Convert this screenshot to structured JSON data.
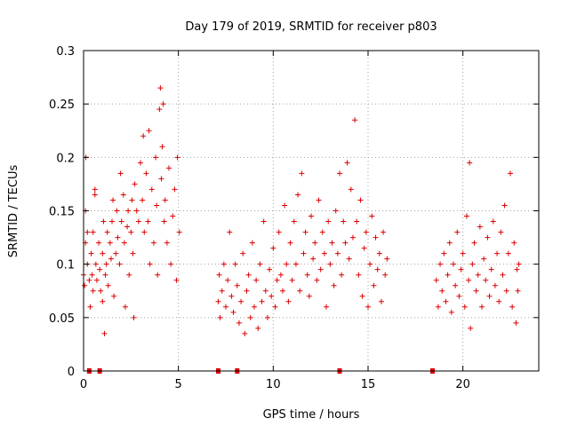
{
  "chart_data": {
    "type": "scatter",
    "title": "Day 179 of 2019, SRMTID for receiver p803",
    "xlabel": "GPS time / hours",
    "ylabel": "SRMTID / TECUs",
    "xlim": [
      0,
      24
    ],
    "ylim": [
      0,
      0.3
    ],
    "x_ticks": [
      0,
      5,
      10,
      15,
      20
    ],
    "x_tick_labels": [
      "0",
      "5",
      "10",
      "15",
      "20"
    ],
    "y_ticks": [
      0,
      0.05,
      0.1,
      0.15,
      0.2,
      0.25,
      0.3
    ],
    "y_tick_labels": [
      "0",
      "0.05",
      "0.1",
      "0.15",
      "0.2",
      "0.25",
      "0.3"
    ],
    "grid": true,
    "marker": "plus",
    "series": [
      {
        "name": "SRMTID",
        "color": "#dd0000",
        "segments": [
          {
            "x_range": [
              0.0,
              5.1
            ],
            "points": [
              [
                0.0,
                0.09
              ],
              [
                0.05,
                0.08
              ],
              [
                0.1,
                0.12
              ],
              [
                0.1,
                0.15
              ],
              [
                0.12,
                0.2
              ],
              [
                0.2,
                0.1
              ],
              [
                0.2,
                0.13
              ],
              [
                0.3,
                0.085
              ],
              [
                0.35,
                0.06
              ],
              [
                0.4,
                0.11
              ],
              [
                0.45,
                0.09
              ],
              [
                0.5,
                0.075
              ],
              [
                0.5,
                0.13
              ],
              [
                0.6,
                0.165
              ],
              [
                0.6,
                0.17
              ],
              [
                0.65,
                0.1
              ],
              [
                0.7,
                0.085
              ],
              [
                0.8,
                0.12
              ],
              [
                0.85,
                0.095
              ],
              [
                0.9,
                0.075
              ],
              [
                1.0,
                0.11
              ],
              [
                1.0,
                0.065
              ],
              [
                1.05,
                0.14
              ],
              [
                1.1,
                0.035
              ],
              [
                1.15,
                0.09
              ],
              [
                1.2,
                0.1
              ],
              [
                1.25,
                0.13
              ],
              [
                1.3,
                0.08
              ],
              [
                1.4,
                0.12
              ],
              [
                1.45,
                0.105
              ],
              [
                1.5,
                0.14
              ],
              [
                1.55,
                0.16
              ],
              [
                1.6,
                0.07
              ],
              [
                1.7,
                0.11
              ],
              [
                1.75,
                0.15
              ],
              [
                1.8,
                0.125
              ],
              [
                1.9,
                0.1
              ],
              [
                1.95,
                0.185
              ],
              [
                2.0,
                0.14
              ],
              [
                2.1,
                0.165
              ],
              [
                2.15,
                0.12
              ],
              [
                2.2,
                0.06
              ],
              [
                2.3,
                0.135
              ],
              [
                2.35,
                0.15
              ],
              [
                2.4,
                0.09
              ],
              [
                2.5,
                0.13
              ],
              [
                2.55,
                0.16
              ],
              [
                2.6,
                0.11
              ],
              [
                2.65,
                0.05
              ],
              [
                2.7,
                0.175
              ],
              [
                2.8,
                0.15
              ],
              [
                2.9,
                0.14
              ],
              [
                3.0,
                0.195
              ],
              [
                3.1,
                0.16
              ],
              [
                3.15,
                0.22
              ],
              [
                3.2,
                0.13
              ],
              [
                3.3,
                0.185
              ],
              [
                3.4,
                0.14
              ],
              [
                3.45,
                0.225
              ],
              [
                3.5,
                0.1
              ],
              [
                3.6,
                0.17
              ],
              [
                3.7,
                0.12
              ],
              [
                3.8,
                0.2
              ],
              [
                3.85,
                0.155
              ],
              [
                3.9,
                0.09
              ],
              [
                4.0,
                0.245
              ],
              [
                4.05,
                0.265
              ],
              [
                4.1,
                0.18
              ],
              [
                4.15,
                0.21
              ],
              [
                4.2,
                0.25
              ],
              [
                4.25,
                0.14
              ],
              [
                4.3,
                0.16
              ],
              [
                4.4,
                0.12
              ],
              [
                4.5,
                0.19
              ],
              [
                4.6,
                0.1
              ],
              [
                4.7,
                0.145
              ],
              [
                4.8,
                0.17
              ],
              [
                4.9,
                0.085
              ],
              [
                4.95,
                0.2
              ],
              [
                5.05,
                0.13
              ]
            ]
          },
          {
            "x_range": [
              7.0,
              16.0
            ],
            "points": [
              [
                7.1,
                0.065
              ],
              [
                7.15,
                0.09
              ],
              [
                7.2,
                0.05
              ],
              [
                7.3,
                0.075
              ],
              [
                7.4,
                0.1
              ],
              [
                7.5,
                0.06
              ],
              [
                7.6,
                0.085
              ],
              [
                7.7,
                0.13
              ],
              [
                7.8,
                0.07
              ],
              [
                7.9,
                0.055
              ],
              [
                8.0,
                0.1
              ],
              [
                8.1,
                0.08
              ],
              [
                8.2,
                0.045
              ],
              [
                8.3,
                0.065
              ],
              [
                8.4,
                0.11
              ],
              [
                8.5,
                0.035
              ],
              [
                8.6,
                0.075
              ],
              [
                8.7,
                0.09
              ],
              [
                8.8,
                0.05
              ],
              [
                8.9,
                0.12
              ],
              [
                9.0,
                0.06
              ],
              [
                9.1,
                0.085
              ],
              [
                9.2,
                0.04
              ],
              [
                9.3,
                0.1
              ],
              [
                9.4,
                0.065
              ],
              [
                9.5,
                0.14
              ],
              [
                9.6,
                0.075
              ],
              [
                9.7,
                0.05
              ],
              [
                9.8,
                0.095
              ],
              [
                9.9,
                0.07
              ],
              [
                10.0,
                0.115
              ],
              [
                10.1,
                0.06
              ],
              [
                10.2,
                0.085
              ],
              [
                10.3,
                0.13
              ],
              [
                10.4,
                0.09
              ],
              [
                10.5,
                0.075
              ],
              [
                10.6,
                0.155
              ],
              [
                10.7,
                0.1
              ],
              [
                10.8,
                0.065
              ],
              [
                10.9,
                0.12
              ],
              [
                11.0,
                0.085
              ],
              [
                11.1,
                0.14
              ],
              [
                11.2,
                0.1
              ],
              [
                11.3,
                0.165
              ],
              [
                11.4,
                0.075
              ],
              [
                11.5,
                0.185
              ],
              [
                11.6,
                0.11
              ],
              [
                11.7,
                0.13
              ],
              [
                11.8,
                0.09
              ],
              [
                11.9,
                0.07
              ],
              [
                12.0,
                0.145
              ],
              [
                12.1,
                0.105
              ],
              [
                12.2,
                0.12
              ],
              [
                12.3,
                0.085
              ],
              [
                12.4,
                0.16
              ],
              [
                12.5,
                0.095
              ],
              [
                12.6,
                0.13
              ],
              [
                12.7,
                0.11
              ],
              [
                12.8,
                0.06
              ],
              [
                12.9,
                0.14
              ],
              [
                13.0,
                0.1
              ],
              [
                13.1,
                0.12
              ],
              [
                13.2,
                0.08
              ],
              [
                13.3,
                0.15
              ],
              [
                13.4,
                0.11
              ],
              [
                13.5,
                0.185
              ],
              [
                13.6,
                0.09
              ],
              [
                13.7,
                0.14
              ],
              [
                13.8,
                0.12
              ],
              [
                13.9,
                0.195
              ],
              [
                14.0,
                0.105
              ],
              [
                14.1,
                0.17
              ],
              [
                14.2,
                0.125
              ],
              [
                14.3,
                0.235
              ],
              [
                14.4,
                0.14
              ],
              [
                14.5,
                0.09
              ],
              [
                14.6,
                0.16
              ],
              [
                14.7,
                0.07
              ],
              [
                14.8,
                0.115
              ],
              [
                14.9,
                0.13
              ],
              [
                15.0,
                0.06
              ],
              [
                15.1,
                0.1
              ],
              [
                15.2,
                0.145
              ],
              [
                15.3,
                0.08
              ],
              [
                15.4,
                0.125
              ],
              [
                15.5,
                0.095
              ],
              [
                15.6,
                0.11
              ],
              [
                15.7,
                0.065
              ],
              [
                15.8,
                0.13
              ],
              [
                15.9,
                0.09
              ],
              [
                16.0,
                0.105
              ]
            ]
          },
          {
            "x_range": [
              18.5,
              23.0
            ],
            "points": [
              [
                18.6,
                0.085
              ],
              [
                18.7,
                0.06
              ],
              [
                18.8,
                0.1
              ],
              [
                18.9,
                0.075
              ],
              [
                19.0,
                0.11
              ],
              [
                19.1,
                0.065
              ],
              [
                19.2,
                0.09
              ],
              [
                19.3,
                0.12
              ],
              [
                19.4,
                0.055
              ],
              [
                19.5,
                0.1
              ],
              [
                19.6,
                0.08
              ],
              [
                19.7,
                0.13
              ],
              [
                19.8,
                0.07
              ],
              [
                19.9,
                0.095
              ],
              [
                20.0,
                0.11
              ],
              [
                20.1,
                0.06
              ],
              [
                20.2,
                0.145
              ],
              [
                20.3,
                0.085
              ],
              [
                20.35,
                0.195
              ],
              [
                20.4,
                0.04
              ],
              [
                20.5,
                0.1
              ],
              [
                20.6,
                0.12
              ],
              [
                20.7,
                0.075
              ],
              [
                20.8,
                0.09
              ],
              [
                20.9,
                0.135
              ],
              [
                21.0,
                0.06
              ],
              [
                21.1,
                0.105
              ],
              [
                21.2,
                0.085
              ],
              [
                21.3,
                0.125
              ],
              [
                21.4,
                0.07
              ],
              [
                21.5,
                0.095
              ],
              [
                21.6,
                0.14
              ],
              [
                21.7,
                0.08
              ],
              [
                21.8,
                0.11
              ],
              [
                21.9,
                0.065
              ],
              [
                22.0,
                0.13
              ],
              [
                22.1,
                0.09
              ],
              [
                22.2,
                0.155
              ],
              [
                22.3,
                0.075
              ],
              [
                22.4,
                0.11
              ],
              [
                22.5,
                0.185
              ],
              [
                22.6,
                0.06
              ],
              [
                22.7,
                0.12
              ],
              [
                22.8,
                0.045
              ],
              [
                22.85,
                0.095
              ],
              [
                22.9,
                0.075
              ],
              [
                22.95,
                0.1
              ]
            ]
          }
        ]
      }
    ],
    "baseline_markers": {
      "name": "data gap markers",
      "color": "#dd0000",
      "y": 0,
      "x": [
        0.3,
        0.85,
        7.1,
        8.1,
        13.5,
        18.4
      ]
    }
  }
}
